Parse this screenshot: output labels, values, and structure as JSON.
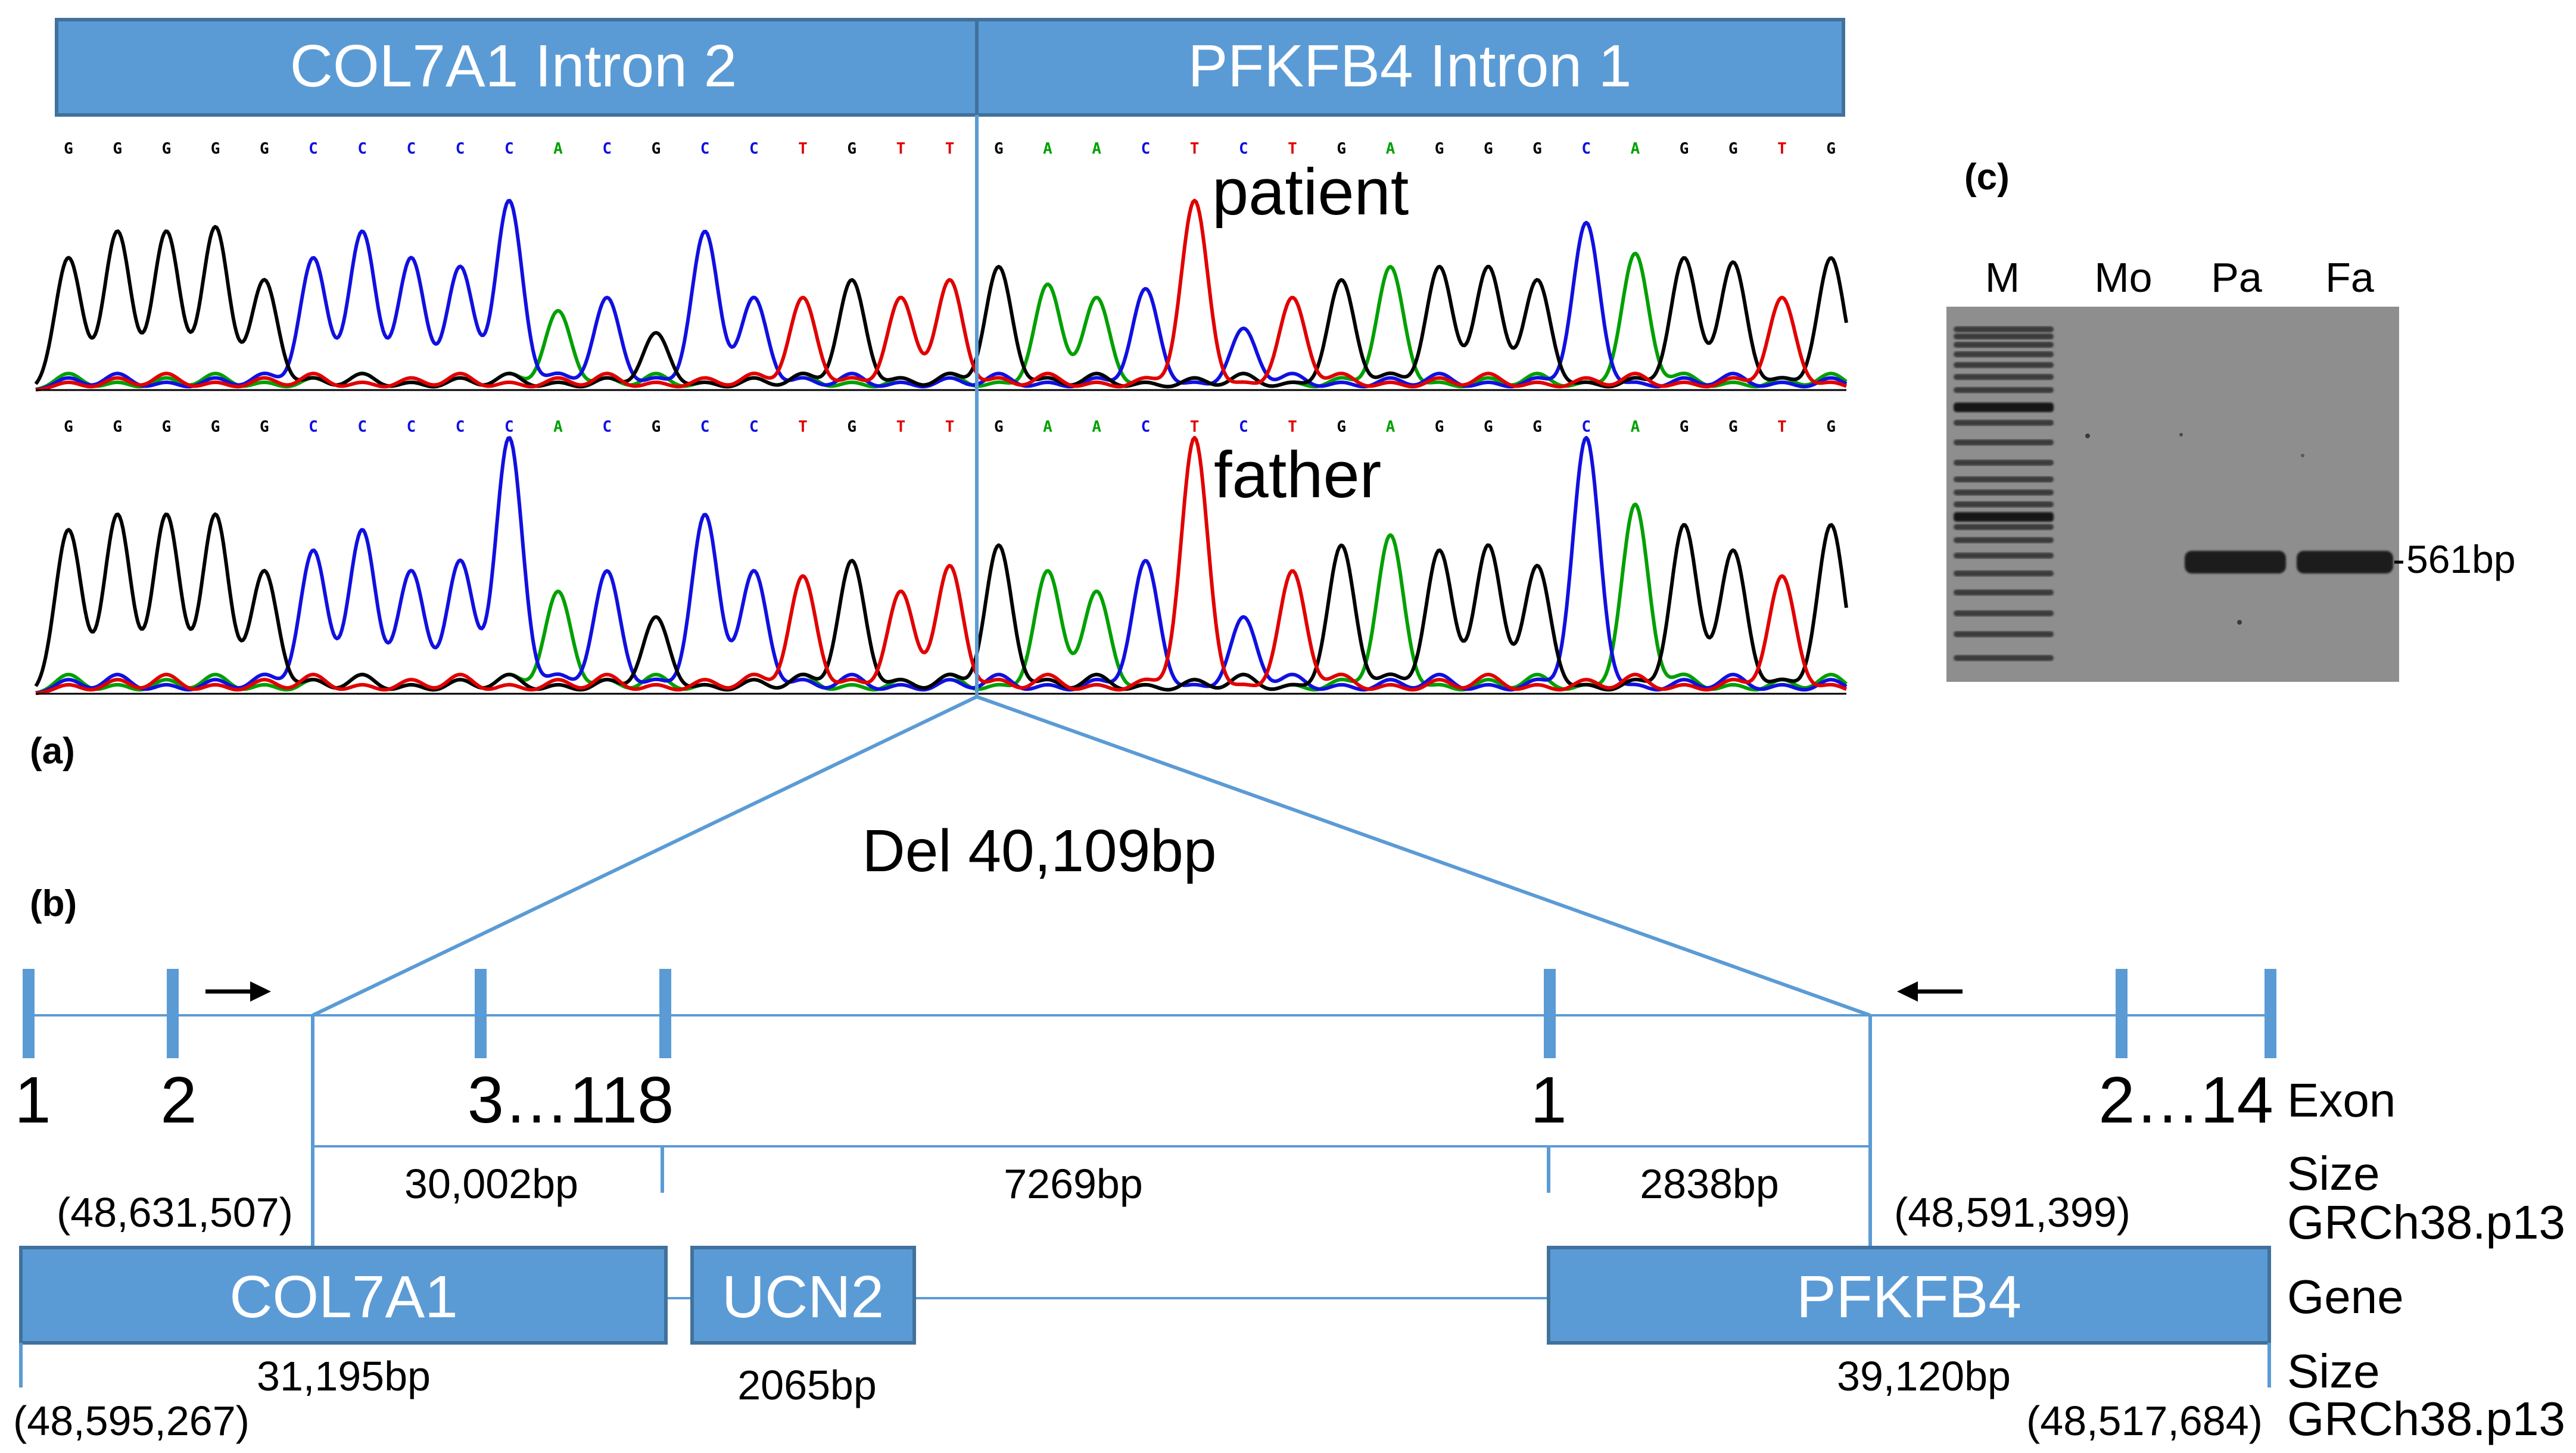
{
  "colors": {
    "accent": "#5b9bd5",
    "accent_dark": "#41719c",
    "base_A": "#00a000",
    "base_C": "#1010e0",
    "base_G": "#000000",
    "base_T": "#e00000",
    "gel_background": "#8e8e8e"
  },
  "panel_a": {
    "label": "(a)",
    "header_left": "COL7A1 Intron 2",
    "header_right": "PFKFB4 Intron 1",
    "sequence": [
      "G",
      "G",
      "G",
      "G",
      "G",
      "C",
      "C",
      "C",
      "C",
      "C",
      "A",
      "C",
      "G",
      "C",
      "C",
      "T",
      "G",
      "T",
      "T",
      "G",
      "A",
      "A",
      "C",
      "T",
      "C",
      "T",
      "G",
      "A",
      "G",
      "G",
      "G",
      "C",
      "A",
      "G",
      "G",
      "T",
      "G"
    ],
    "patient_label": "patient",
    "father_label": "father",
    "patient_peaks": [
      0.6,
      0.72,
      0.72,
      0.74,
      0.5,
      0.6,
      0.72,
      0.6,
      0.56,
      0.86,
      0.36,
      0.42,
      0.26,
      0.72,
      0.42,
      0.42,
      0.5,
      0.42,
      0.5,
      0.56,
      0.48,
      0.42,
      0.46,
      0.86,
      0.28,
      0.42,
      0.5,
      0.56,
      0.56,
      0.56,
      0.5,
      0.76,
      0.62,
      0.6,
      0.58,
      0.42,
      0.6
    ],
    "father_peaks": [
      0.64,
      0.7,
      0.7,
      0.7,
      0.48,
      0.56,
      0.64,
      0.48,
      0.52,
      1.0,
      0.4,
      0.48,
      0.3,
      0.7,
      0.48,
      0.46,
      0.52,
      0.4,
      0.5,
      0.58,
      0.48,
      0.4,
      0.52,
      1.0,
      0.3,
      0.48,
      0.58,
      0.62,
      0.56,
      0.58,
      0.5,
      1.0,
      0.74,
      0.66,
      0.56,
      0.46,
      0.66
    ]
  },
  "panel_b": {
    "label": "(b)",
    "deletion_label": "Del 40,109bp",
    "exon_left_1": "1",
    "exon_left_2": "2",
    "exon_left_3": "3…118",
    "exon_right_1": "1",
    "exon_right_2": "2…14",
    "row_exon": "Exon",
    "row_size": "Size",
    "row_assembly": "GRCh38.p13",
    "row_gene": "Gene",
    "row_size_2": "Size",
    "row_assembly_2": "GRCh38.p13",
    "size_seg_1": "30,002bp",
    "size_seg_2": "7269bp",
    "size_seg_3": "2838bp",
    "coord_break_left": "(48,631,507)",
    "coord_break_right": "(48,591,399)",
    "gene_1": "COL7A1",
    "gene_2": "UCN2",
    "gene_3": "PFKFB4",
    "gene_1_size": "31,195bp",
    "gene_2_size": "2065bp",
    "gene_3_size": "39,120bp",
    "coord_gene_1_end": "(48,595,267)",
    "coord_gene_3_end": "(48,517,684)"
  },
  "panel_c": {
    "label": "(c)",
    "lane_M": "M",
    "lane_Mo": "Mo",
    "lane_Pa": "Pa",
    "lane_Fa": "Fa",
    "band_size": "561bp"
  }
}
